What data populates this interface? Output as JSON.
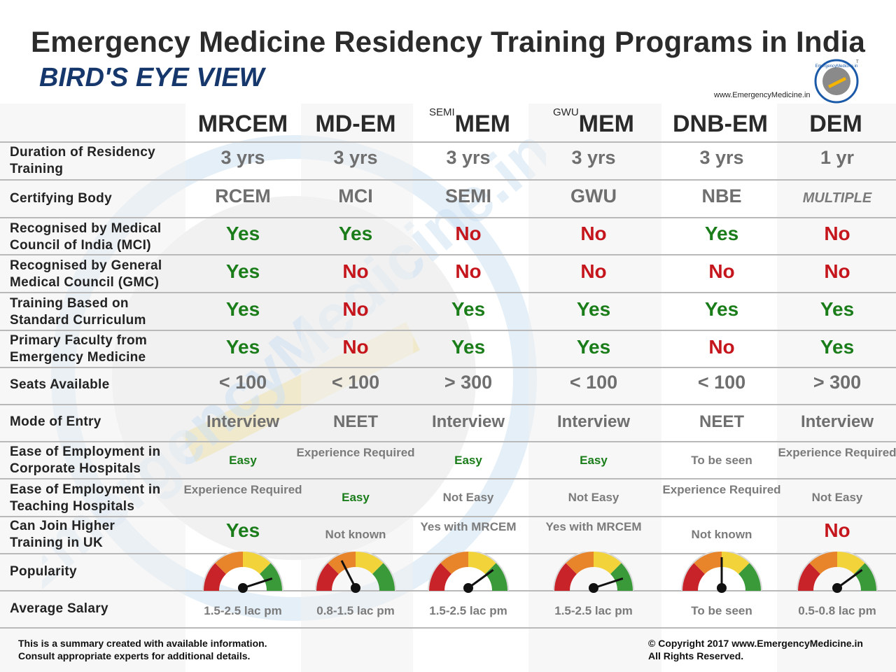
{
  "header": {
    "title": "Emergency Medicine Residency Training Programs in India",
    "subtitle": "BIRD'S EYE VIEW",
    "website": "www.EmergencyMedicine.in",
    "logo_text": "EmergencyMedicine.in",
    "trademark": "TM"
  },
  "watermark_text": "EmergencyMedicine.in",
  "columns": [
    {
      "name": "MRCEM",
      "prefix": ""
    },
    {
      "name": "MD-EM",
      "prefix": ""
    },
    {
      "name": "MEM",
      "prefix": "SEMI"
    },
    {
      "name": "MEM",
      "prefix": "GWU"
    },
    {
      "name": "DNB-EM",
      "prefix": ""
    },
    {
      "name": "DEM",
      "prefix": ""
    }
  ],
  "rows": {
    "duration": {
      "label": "Duration of Residency Training",
      "values": [
        "3 yrs",
        "3 yrs",
        "3 yrs",
        "3 yrs",
        "3 yrs",
        "1 yr"
      ]
    },
    "certifying": {
      "label": "Certifying Body",
      "values": [
        "RCEM",
        "MCI",
        "SEMI",
        "GWU",
        "NBE",
        "MULTIPLE"
      ]
    },
    "mci": {
      "label": "Recognised by Medical Council of India (MCI)",
      "values": [
        "Yes",
        "Yes",
        "No",
        "No",
        "Yes",
        "No"
      ]
    },
    "gmc": {
      "label": "Recognised by General Medical Council (GMC)",
      "values": [
        "Yes",
        "No",
        "No",
        "No",
        "No",
        "No"
      ]
    },
    "curriculum": {
      "label": "Training Based on Standard Curriculum",
      "values": [
        "Yes",
        "No",
        "Yes",
        "Yes",
        "Yes",
        "Yes"
      ]
    },
    "faculty": {
      "label": "Primary Faculty from Emergency Medicine",
      "values": [
        "Yes",
        "No",
        "Yes",
        "Yes",
        "No",
        "Yes"
      ]
    },
    "seats": {
      "label": "Seats Available",
      "values": [
        "< 100",
        "< 100",
        "> 300",
        "< 100",
        "< 100",
        "> 300"
      ]
    },
    "entry": {
      "label": "Mode of Entry",
      "values": [
        "Interview",
        "NEET",
        "Interview",
        "Interview",
        "NEET",
        "Interview"
      ]
    },
    "corporate": {
      "label": "Ease of Employment in Corporate Hospitals",
      "values": [
        "Easy",
        "Experience Required",
        "Easy",
        "Easy",
        "To be seen",
        "Experience Required"
      ]
    },
    "teaching": {
      "label": "Ease of Employment in Teaching Hospitals",
      "values": [
        "Experience Required",
        "Easy",
        "Not Easy",
        "Not Easy",
        "Experience Required",
        "Not Easy"
      ]
    },
    "uk": {
      "label": "Can Join Higher Training in UK",
      "values": [
        "Yes",
        "Not known",
        "Yes with MRCEM",
        "Yes with MRCEM",
        "Not known",
        "No"
      ]
    },
    "popularity": {
      "label": "Popularity",
      "levels": [
        0.9,
        0.35,
        0.8,
        0.9,
        0.5,
        0.8
      ]
    },
    "salary": {
      "label": "Average Salary",
      "values": [
        "1.5-2.5 lac pm",
        "0.8-1.5 lac pm",
        "1.5-2.5 lac pm",
        "1.5-2.5 lac pm",
        "To be seen",
        "0.5-0.8 lac pm"
      ]
    }
  },
  "footer": {
    "disclaimer_line1": "This is a summary created with available information.",
    "disclaimer_line2": "Consult appropriate experts for additional details.",
    "copyright_line1": "© Copyright 2017 www.EmergencyMedicine.in",
    "copyright_line2": "All Rights Reserved."
  },
  "colors": {
    "yes": "#1a7d1a",
    "no": "#c4161c",
    "title": "#2b2b2b",
    "subtitle": "#15376b",
    "gauge_red": "#c9232a",
    "gauge_orange": "#e8842a",
    "gauge_yellow": "#f2d43a",
    "gauge_green": "#3a9a3a"
  }
}
